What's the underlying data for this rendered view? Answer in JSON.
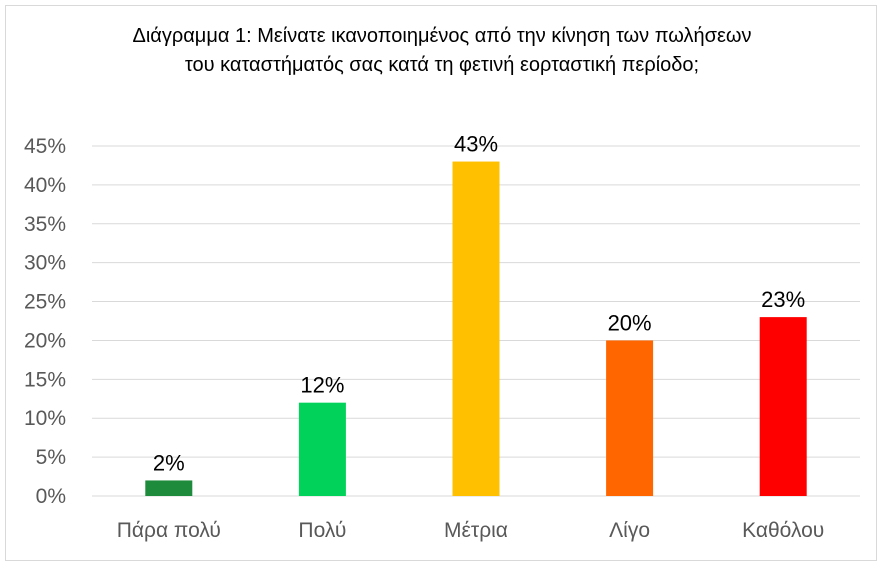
{
  "chart_data": {
    "type": "bar",
    "title": "Διάγραμμα 1: Μείνατε ικανοποιημένος από την κίνηση των πωλήσεων του καταστήματός σας κατά τη φετινή εορταστική περίοδο;",
    "categories": [
      "Πάρα πολύ",
      "Πολύ",
      "Μέτρια",
      "Λίγο",
      "Καθόλου"
    ],
    "values": [
      2,
      12,
      43,
      20,
      23
    ],
    "data_labels": [
      "2%",
      "12%",
      "43%",
      "20%",
      "23%"
    ],
    "colors": [
      "#1e8a3c",
      "#00d25a",
      "#ffc000",
      "#ff6600",
      "#ff0000"
    ],
    "ylim": [
      0,
      45
    ],
    "y_ticks": [
      0,
      5,
      10,
      15,
      20,
      25,
      30,
      35,
      40,
      45
    ],
    "y_tick_labels": [
      "0%",
      "5%",
      "10%",
      "15%",
      "20%",
      "25%",
      "30%",
      "35%",
      "40%",
      "45%"
    ],
    "xlabel": "",
    "ylabel": "",
    "grid": true,
    "legend": "none"
  }
}
